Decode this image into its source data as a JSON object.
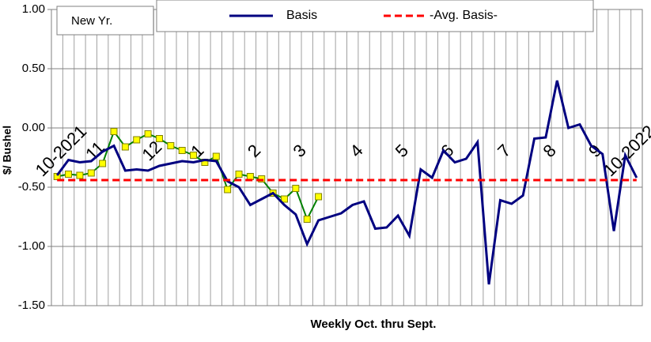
{
  "chart_data": {
    "type": "line",
    "x_label": "Weekly Oct. thru Sept.",
    "y_label": "$/ Bushel",
    "categories": [
      "10-2021",
      null,
      null,
      "11",
      null,
      null,
      null,
      null,
      "12",
      null,
      null,
      null,
      "1",
      null,
      null,
      null,
      null,
      "2",
      null,
      null,
      null,
      "3",
      null,
      null,
      null,
      null,
      "4",
      null,
      null,
      null,
      "5",
      null,
      null,
      null,
      "6",
      null,
      null,
      null,
      null,
      "7",
      null,
      null,
      null,
      "8",
      null,
      null,
      null,
      "9",
      null,
      null,
      "10-2022",
      null
    ],
    "series": [
      {
        "name": "New Yr.",
        "color": "#008000",
        "marker_color": "#ffff00",
        "values": [
          -0.41,
          -0.39,
          -0.4,
          -0.38,
          -0.3,
          -0.03,
          -0.16,
          -0.1,
          -0.05,
          -0.09,
          -0.15,
          -0.19,
          -0.23,
          -0.29,
          -0.24,
          -0.52,
          -0.39,
          -0.41,
          -0.43,
          -0.55,
          -0.6,
          -0.51,
          -0.77,
          -0.58,
          null,
          null,
          null,
          null,
          null,
          null,
          null,
          null,
          null,
          null,
          null,
          null,
          null,
          null,
          null,
          null,
          null,
          null,
          null,
          null,
          null,
          null,
          null,
          null,
          null,
          null,
          null,
          null
        ]
      },
      {
        "name": "Basis",
        "color": "#000080",
        "values": [
          -0.4,
          -0.27,
          -0.29,
          -0.28,
          -0.2,
          -0.15,
          -0.36,
          -0.35,
          -0.36,
          -0.32,
          -0.3,
          -0.28,
          -0.29,
          -0.27,
          -0.28,
          -0.45,
          -0.5,
          -0.65,
          -0.6,
          -0.55,
          -0.65,
          -0.73,
          -0.98,
          -0.78,
          -0.75,
          -0.72,
          -0.65,
          -0.62,
          -0.85,
          -0.84,
          -0.74,
          -0.91,
          -0.35,
          -0.42,
          -0.19,
          -0.29,
          -0.26,
          -0.12,
          -1.32,
          -0.61,
          -0.64,
          -0.57,
          -0.09,
          -0.08,
          0.4,
          0.0,
          0.03,
          -0.15,
          -0.22,
          -0.87,
          -0.23,
          -0.42
        ]
      },
      {
        "name": "-Avg. Basis-",
        "color": "#ff0000",
        "dashed": true,
        "values": [
          -0.44,
          -0.44,
          -0.44,
          -0.44,
          -0.44,
          -0.44,
          -0.44,
          -0.44,
          -0.44,
          -0.44,
          -0.44,
          -0.44,
          -0.44,
          -0.44,
          -0.44,
          -0.44,
          -0.44,
          -0.44,
          -0.44,
          -0.44,
          -0.44,
          -0.44,
          -0.44,
          -0.44,
          -0.44,
          -0.44,
          -0.44,
          -0.44,
          -0.44,
          -0.44,
          -0.44,
          -0.44,
          -0.44,
          -0.44,
          -0.44,
          -0.44,
          -0.44,
          -0.44,
          -0.44,
          -0.44,
          -0.44,
          -0.44,
          -0.44,
          -0.44,
          -0.44,
          -0.44,
          -0.44,
          -0.44,
          -0.44,
          -0.44,
          -0.44,
          -0.44
        ]
      }
    ],
    "ylim": [
      -1.5,
      1.0
    ],
    "yticks": [
      {
        "value": -1.5,
        "label": "-1.50"
      },
      {
        "value": -1,
        "label": "-1.00"
      },
      {
        "value": -0.5,
        "label": "-0.50"
      },
      {
        "value": 0,
        "label": "0.00"
      },
      {
        "value": 0.5,
        "label": "0.50"
      },
      {
        "value": 1,
        "label": "1.00"
      }
    ],
    "grid": true
  }
}
